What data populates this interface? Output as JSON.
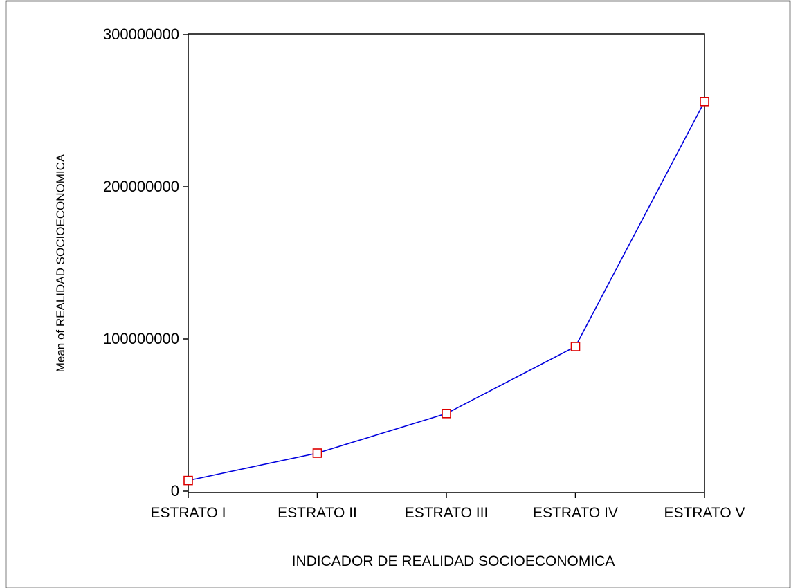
{
  "chart_data": {
    "type": "line",
    "title": "",
    "xlabel": "INDICADOR DE REALIDAD SOCIOECONOMICA",
    "ylabel": "Mean of REALIDAD SOCIOECONOMICA",
    "categories": [
      "ESTRATO I",
      "ESTRATO II",
      "ESTRATO III",
      "ESTRATO IV",
      "ESTRATO V"
    ],
    "series": [
      {
        "values": [
          7000000,
          25000000,
          51000000,
          95000000,
          256000000
        ]
      }
    ],
    "ylim": [
      0,
      300000000
    ],
    "yticks": [
      0,
      100000000,
      200000000,
      300000000
    ],
    "ytick_labels": [
      "0",
      "100000000",
      "200000000",
      "300000000"
    ],
    "grid": false,
    "legend": "none",
    "colors": {
      "line": "#0000dd",
      "marker": "#dd0000",
      "frame": "#000000"
    },
    "marker": "square-open"
  }
}
